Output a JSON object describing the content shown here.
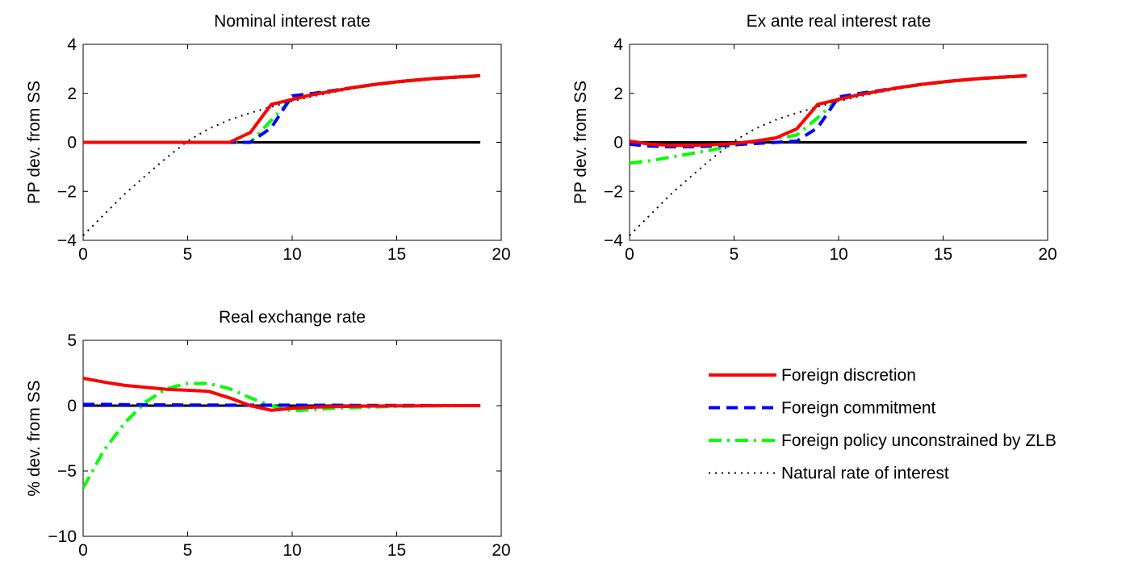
{
  "chart_data": [
    {
      "type": "line",
      "title": "Nominal interest rate",
      "xlabel": "",
      "ylabel": "PP dev. from SS",
      "xlim": [
        0,
        20
      ],
      "ylim": [
        -4,
        4
      ],
      "xticks": [
        0,
        5,
        10,
        15,
        20
      ],
      "yticks": [
        -4,
        -2,
        0,
        2,
        4
      ],
      "zero_line": true,
      "x": [
        0,
        1,
        2,
        3,
        4,
        5,
        6,
        7,
        8,
        9,
        10,
        11,
        12,
        13,
        14,
        15,
        16,
        17,
        18,
        19
      ],
      "series": [
        {
          "name": "Foreign discretion",
          "style": "solid",
          "color": "#ff0000",
          "values": [
            0,
            0,
            0,
            0,
            0,
            0,
            0,
            0,
            0.4,
            1.55,
            1.75,
            1.95,
            2.1,
            2.25,
            2.37,
            2.47,
            2.55,
            2.62,
            2.67,
            2.72
          ]
        },
        {
          "name": "Foreign commitment",
          "style": "dashed",
          "color": "#0000ff",
          "values": [
            0,
            0,
            0,
            0,
            0,
            0,
            0,
            0,
            0,
            0.6,
            1.9,
            2.0,
            2.12,
            2.25,
            2.37,
            2.47,
            2.55,
            2.62,
            2.67,
            2.72
          ]
        },
        {
          "name": "Foreign policy unconstrained by ZLB",
          "style": "dashdot",
          "color": "#00ff00",
          "values": [
            0,
            0,
            0,
            0,
            0,
            0,
            0,
            0,
            0,
            0.9,
            1.8,
            1.95,
            2.1,
            2.24,
            2.36,
            2.46,
            2.54,
            2.61,
            2.66,
            2.71
          ]
        },
        {
          "name": "Natural rate of interest",
          "style": "dotted",
          "color": "#000000",
          "values": [
            -3.8,
            -2.95,
            -2.1,
            -1.35,
            -0.62,
            0.05,
            0.55,
            0.92,
            1.2,
            1.45,
            1.68,
            1.88,
            2.05,
            2.2,
            2.34,
            2.45,
            2.54,
            2.61,
            2.66,
            2.71
          ]
        }
      ]
    },
    {
      "type": "line",
      "title": "Ex ante real interest rate",
      "xlabel": "",
      "ylabel": "PP dev. from SS",
      "xlim": [
        0,
        20
      ],
      "ylim": [
        -4,
        4
      ],
      "xticks": [
        0,
        5,
        10,
        15,
        20
      ],
      "yticks": [
        -4,
        -2,
        0,
        2,
        4
      ],
      "zero_line": true,
      "x": [
        0,
        1,
        2,
        3,
        4,
        5,
        6,
        7,
        8,
        9,
        10,
        11,
        12,
        13,
        14,
        15,
        16,
        17,
        18,
        19
      ],
      "series": [
        {
          "name": "Foreign discretion",
          "style": "solid",
          "color": "#ff0000",
          "values": [
            0.05,
            -0.08,
            -0.12,
            -0.12,
            -0.1,
            -0.05,
            0.05,
            0.18,
            0.55,
            1.55,
            1.75,
            1.95,
            2.1,
            2.25,
            2.37,
            2.47,
            2.55,
            2.62,
            2.67,
            2.72
          ]
        },
        {
          "name": "Foreign commitment",
          "style": "dashed",
          "color": "#0000ff",
          "values": [
            -0.08,
            -0.15,
            -0.18,
            -0.18,
            -0.15,
            -0.1,
            -0.05,
            0.0,
            0.05,
            0.6,
            1.85,
            2.0,
            2.12,
            2.25,
            2.37,
            2.47,
            2.55,
            2.62,
            2.67,
            2.72
          ]
        },
        {
          "name": "Foreign policy unconstrained by ZLB",
          "style": "dashdot",
          "color": "#00ff00",
          "values": [
            -0.85,
            -0.75,
            -0.6,
            -0.45,
            -0.3,
            -0.12,
            0.05,
            0.15,
            0.3,
            1.0,
            1.78,
            1.95,
            2.1,
            2.24,
            2.36,
            2.46,
            2.54,
            2.61,
            2.66,
            2.71
          ]
        },
        {
          "name": "Natural rate of interest",
          "style": "dotted",
          "color": "#000000",
          "values": [
            -3.8,
            -2.95,
            -2.1,
            -1.35,
            -0.62,
            0.05,
            0.55,
            0.92,
            1.2,
            1.45,
            1.68,
            1.88,
            2.05,
            2.2,
            2.34,
            2.45,
            2.54,
            2.61,
            2.66,
            2.71
          ]
        }
      ]
    },
    {
      "type": "line",
      "title": "Real exchange rate",
      "xlabel": "",
      "ylabel": "% dev. from SS",
      "xlim": [
        0,
        20
      ],
      "ylim": [
        -10,
        5
      ],
      "xticks": [
        0,
        5,
        10,
        15,
        20
      ],
      "yticks": [
        -10,
        -5,
        0,
        5
      ],
      "zero_line": true,
      "x": [
        0,
        1,
        2,
        3,
        4,
        5,
        6,
        7,
        8,
        9,
        10,
        11,
        12,
        13,
        14,
        15,
        16,
        17,
        18,
        19
      ],
      "series": [
        {
          "name": "Foreign discretion",
          "style": "solid",
          "color": "#ff0000",
          "values": [
            2.1,
            1.8,
            1.55,
            1.4,
            1.25,
            1.18,
            1.1,
            0.6,
            0.0,
            -0.35,
            -0.2,
            -0.12,
            -0.08,
            -0.05,
            -0.03,
            -0.02,
            -0.01,
            0,
            0,
            0
          ]
        },
        {
          "name": "Foreign commitment",
          "style": "dashed",
          "color": "#0000ff",
          "values": [
            0.1,
            0.1,
            0.08,
            0.07,
            0.06,
            0.05,
            0.05,
            0.04,
            0.04,
            0.04,
            0.04,
            0.03,
            0.03,
            0.02,
            0.02,
            0.01,
            0.01,
            0,
            0,
            0
          ]
        },
        {
          "name": "Foreign policy unconstrained by ZLB",
          "style": "dashdot",
          "color": "#00ff00",
          "values": [
            -6.3,
            -3.4,
            -1.3,
            0.3,
            1.3,
            1.7,
            1.7,
            1.3,
            0.6,
            0.0,
            -0.4,
            -0.3,
            -0.2,
            -0.15,
            -0.1,
            -0.05,
            -0.03,
            -0.01,
            0,
            0
          ]
        }
      ]
    }
  ],
  "legend": {
    "placement": "right of bottom-left panel",
    "entries": [
      {
        "label": "Foreign discretion",
        "style": "solid",
        "color": "#ff0000"
      },
      {
        "label": "Foreign commitment",
        "style": "dashed",
        "color": "#0000ff"
      },
      {
        "label": "Foreign policy unconstrained by ZLB",
        "style": "dashdot",
        "color": "#00ff00"
      },
      {
        "label": "Natural rate of interest",
        "style": "dotted",
        "color": "#000000"
      }
    ]
  }
}
